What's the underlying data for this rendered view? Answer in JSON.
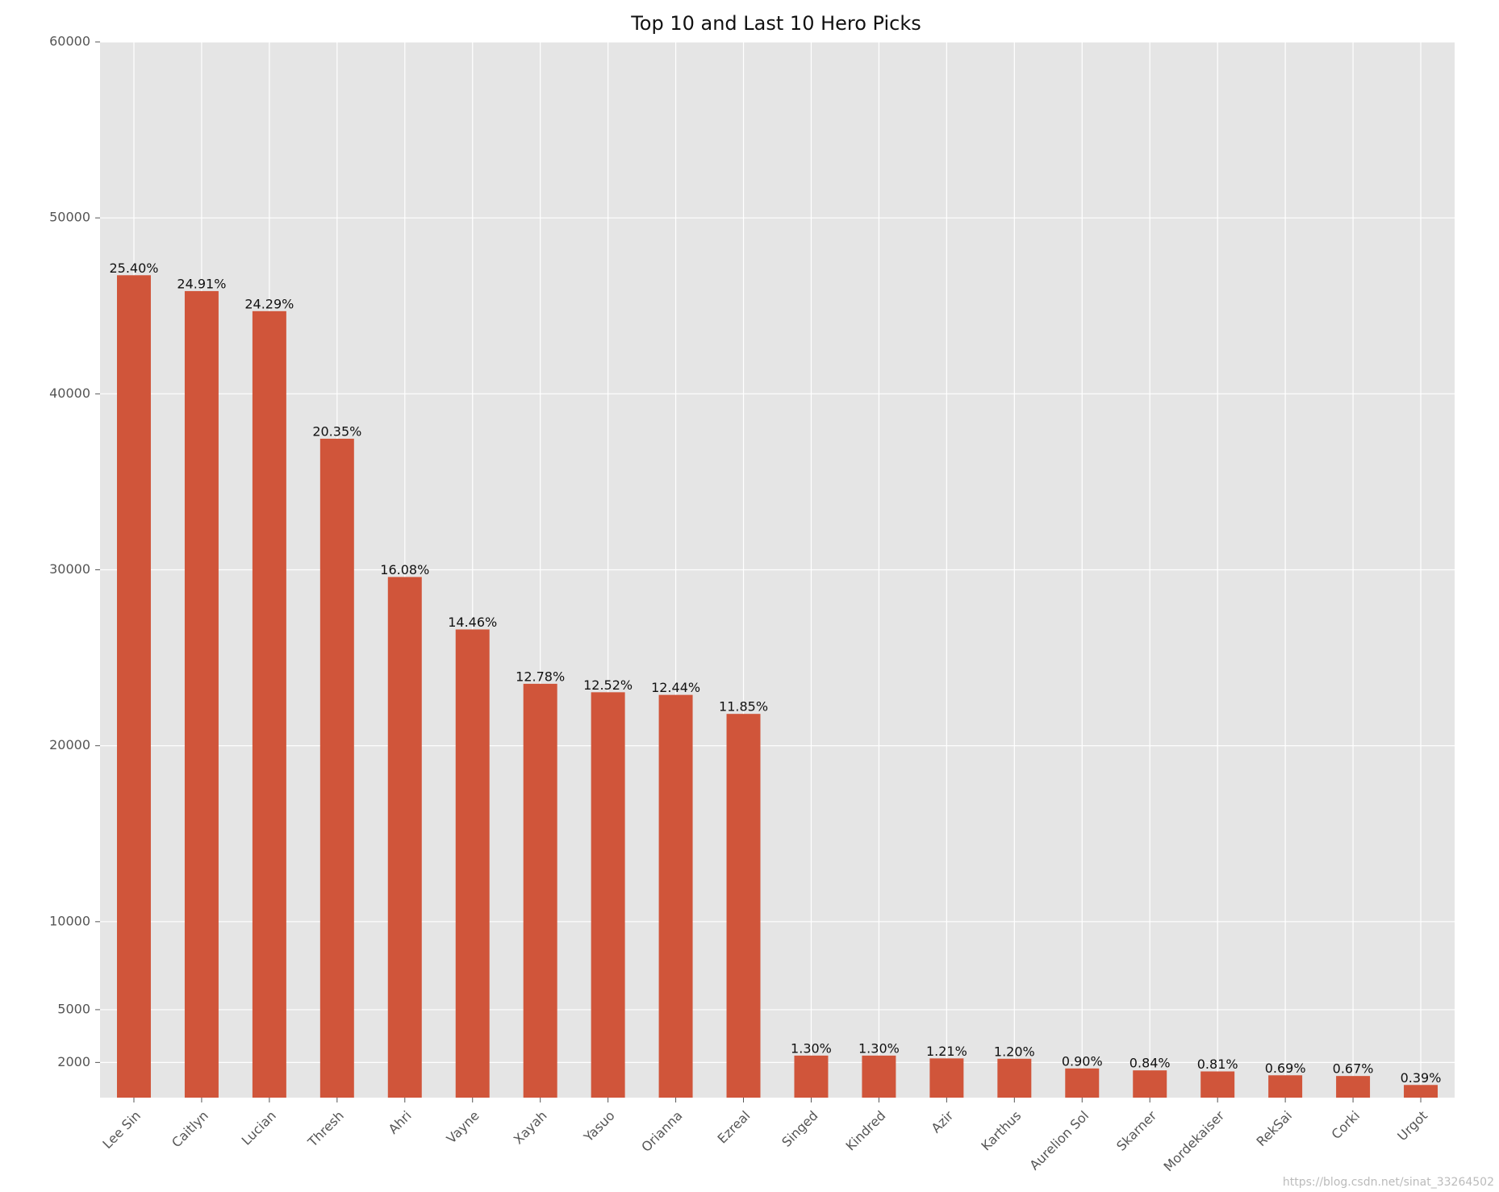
{
  "chart_data": {
    "type": "bar",
    "title": "Top 10 and Last 10 Hero Picks",
    "categories": [
      "Lee Sin",
      "Caitlyn",
      "Lucian",
      "Thresh",
      "Ahri",
      "Vayne",
      "Xayah",
      "Yasuo",
      "Orianna",
      "Ezreal",
      "Singed",
      "Kindred",
      "Azir",
      "Karthus",
      "Aurelion Sol",
      "Skarner",
      "Mordekaiser",
      "RekSai",
      "Corki",
      "Urgot"
    ],
    "values": [
      46740,
      45840,
      44700,
      37450,
      29590,
      26610,
      23520,
      23040,
      22890,
      21810,
      2390,
      2390,
      2230,
      2210,
      1660,
      1550,
      1490,
      1270,
      1230,
      720
    ],
    "bar_labels": [
      "25.40%",
      "24.91%",
      "24.29%",
      "20.35%",
      "16.08%",
      "14.46%",
      "12.78%",
      "12.52%",
      "12.44%",
      "11.85%",
      "1.30%",
      "1.30%",
      "1.21%",
      "1.20%",
      "0.90%",
      "0.84%",
      "0.81%",
      "0.69%",
      "0.67%",
      "0.39%"
    ],
    "color": "#d0553a",
    "ylim": [
      0,
      60000
    ],
    "yticks": [
      2000,
      5000,
      10000,
      20000,
      30000,
      40000,
      50000,
      60000
    ],
    "grid": true,
    "watermark": "https://blog.csdn.net/sinat_33264502"
  }
}
